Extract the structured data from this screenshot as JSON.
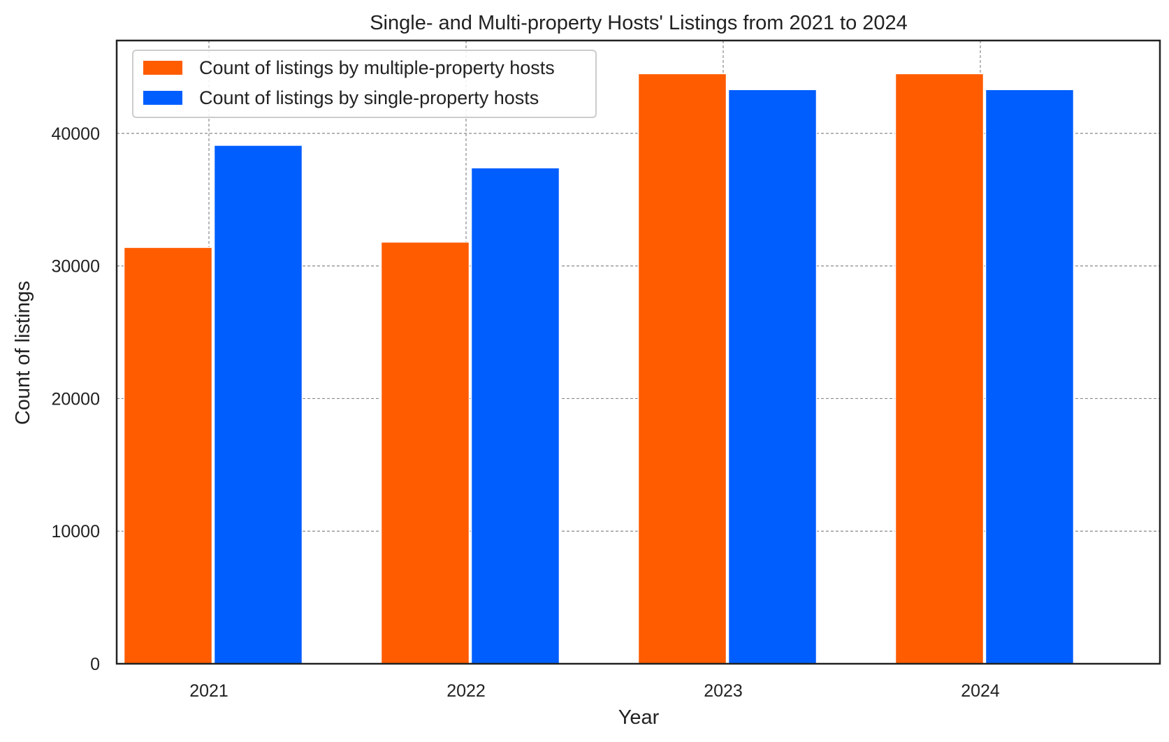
{
  "chart_data": {
    "type": "bar",
    "title": "Single- and Multi-property Hosts' Listings from 2021 to 2024",
    "xlabel": "Year",
    "ylabel": "Count of listings",
    "categories": [
      "2021",
      "2022",
      "2023",
      "2024"
    ],
    "series": [
      {
        "name": "Count of listings by multiple-property hosts",
        "color": "#ff5c00",
        "values": [
          31400,
          31800,
          44500,
          44500
        ]
      },
      {
        "name": "Count of listings by single-property hosts",
        "color": "#005eff",
        "values": [
          39100,
          37400,
          43300,
          43300
        ]
      }
    ],
    "ylim": [
      0,
      47000
    ],
    "yticks": [
      0,
      10000,
      20000,
      30000,
      40000
    ],
    "grid": true,
    "grid_style": "dashed",
    "legend_position": "top-left"
  }
}
